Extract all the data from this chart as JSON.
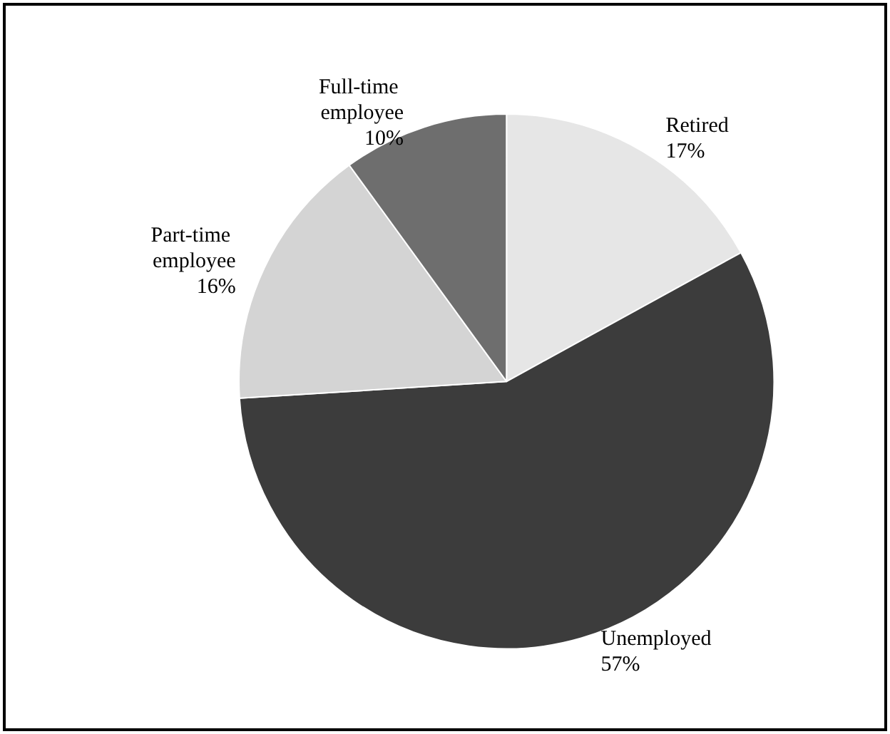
{
  "chart_data": {
    "type": "pie",
    "categories": [
      "Retired",
      "Unemployed",
      "Part-time employee",
      "Full-time employee"
    ],
    "values": [
      17,
      57,
      16,
      10
    ],
    "value_labels": [
      "17%",
      "57%",
      "16%",
      "10%"
    ],
    "colors": [
      "#e6e6e6",
      "#3c3c3c",
      "#d4d4d4",
      "#6e6e6e"
    ],
    "legend": false
  }
}
